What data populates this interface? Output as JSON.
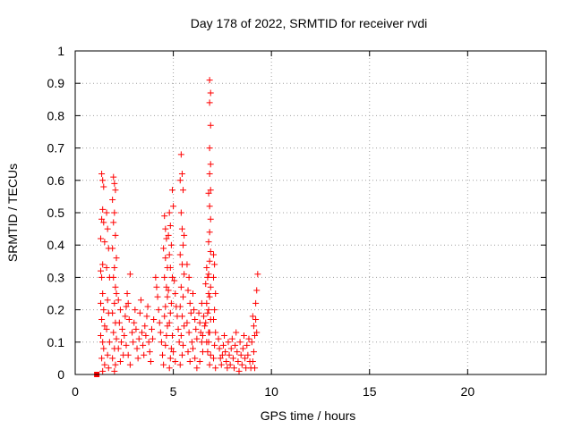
{
  "chart_data": {
    "type": "scatter",
    "title": "Day 178 of 2022, SRMTID for receiver rvdi",
    "xlabel": "GPS time / hours",
    "ylabel": "SRMTID / TECUs",
    "xlim": [
      0,
      24
    ],
    "ylim": [
      0,
      1
    ],
    "xticks": [
      "0",
      "5",
      "10",
      "15",
      "20"
    ],
    "yticks": [
      "0",
      "0.1",
      "0.2",
      "0.3",
      "0.4",
      "0.5",
      "0.6",
      "0.7",
      "0.8",
      "0.9",
      "1"
    ],
    "grid": true,
    "marker": "plus",
    "color": "#ff0000",
    "highlight_point": {
      "x": 1.1,
      "y": 0.0,
      "marker": "square"
    },
    "series": [
      {
        "name": "SRMTID",
        "points": [
          [
            1.35,
            0.62
          ],
          [
            1.4,
            0.6
          ],
          [
            1.45,
            0.58
          ],
          [
            1.4,
            0.51
          ],
          [
            1.35,
            0.48
          ],
          [
            1.45,
            0.47
          ],
          [
            1.3,
            0.42
          ],
          [
            1.5,
            0.41
          ],
          [
            1.4,
            0.34
          ],
          [
            1.3,
            0.32
          ],
          [
            1.35,
            0.3
          ],
          [
            1.4,
            0.25
          ],
          [
            1.3,
            0.22
          ],
          [
            1.45,
            0.2
          ],
          [
            1.35,
            0.17
          ],
          [
            1.5,
            0.15
          ],
          [
            1.3,
            0.12
          ],
          [
            1.4,
            0.1
          ],
          [
            1.45,
            0.08
          ],
          [
            1.35,
            0.05
          ],
          [
            1.5,
            0.03
          ],
          [
            1.4,
            0.01
          ],
          [
            1.6,
            0.5
          ],
          [
            1.65,
            0.45
          ],
          [
            1.7,
            0.39
          ],
          [
            1.6,
            0.33
          ],
          [
            1.75,
            0.3
          ],
          [
            1.65,
            0.23
          ],
          [
            1.7,
            0.19
          ],
          [
            1.6,
            0.14
          ],
          [
            1.75,
            0.1
          ],
          [
            1.65,
            0.06
          ],
          [
            1.7,
            0.02
          ],
          [
            1.95,
            0.61
          ],
          [
            2.0,
            0.59
          ],
          [
            2.05,
            0.57
          ],
          [
            1.9,
            0.54
          ],
          [
            2.0,
            0.5
          ],
          [
            1.95,
            0.47
          ],
          [
            2.05,
            0.43
          ],
          [
            1.9,
            0.39
          ],
          [
            2.1,
            0.36
          ],
          [
            2.0,
            0.33
          ],
          [
            1.95,
            0.3
          ],
          [
            2.05,
            0.27
          ],
          [
            2.1,
            0.25
          ],
          [
            2.0,
            0.22
          ],
          [
            1.9,
            0.19
          ],
          [
            2.05,
            0.16
          ],
          [
            1.95,
            0.13
          ],
          [
            2.1,
            0.11
          ],
          [
            2.0,
            0.08
          ],
          [
            1.9,
            0.05
          ],
          [
            2.05,
            0.03
          ],
          [
            2.0,
            0.01
          ],
          [
            2.2,
            0.23
          ],
          [
            2.3,
            0.2
          ],
          [
            2.25,
            0.16
          ],
          [
            2.4,
            0.14
          ],
          [
            2.35,
            0.1
          ],
          [
            2.2,
            0.08
          ],
          [
            2.45,
            0.06
          ],
          [
            2.3,
            0.04
          ],
          [
            2.5,
            0.12
          ],
          [
            2.55,
            0.18
          ],
          [
            2.6,
            0.21
          ],
          [
            2.65,
            0.25
          ],
          [
            2.7,
            0.22
          ],
          [
            2.75,
            0.17
          ],
          [
            2.8,
            0.31
          ],
          [
            2.6,
            0.09
          ],
          [
            2.7,
            0.06
          ],
          [
            2.8,
            0.03
          ],
          [
            2.9,
            0.13
          ],
          [
            2.95,
            0.1
          ],
          [
            3.0,
            0.16
          ],
          [
            3.05,
            0.2
          ],
          [
            3.1,
            0.14
          ],
          [
            3.15,
            0.08
          ],
          [
            3.2,
            0.05
          ],
          [
            3.25,
            0.11
          ],
          [
            3.3,
            0.19
          ],
          [
            3.35,
            0.23
          ],
          [
            3.4,
            0.13
          ],
          [
            3.45,
            0.09
          ],
          [
            3.5,
            0.06
          ],
          [
            3.55,
            0.15
          ],
          [
            3.6,
            0.12
          ],
          [
            3.65,
            0.18
          ],
          [
            3.7,
            0.21
          ],
          [
            3.75,
            0.1
          ],
          [
            3.8,
            0.07
          ],
          [
            3.85,
            0.04
          ],
          [
            3.9,
            0.14
          ],
          [
            3.95,
            0.11
          ],
          [
            4.0,
            0.17
          ],
          [
            4.1,
            0.3
          ],
          [
            4.15,
            0.27
          ],
          [
            4.2,
            0.24
          ],
          [
            4.25,
            0.2
          ],
          [
            4.3,
            0.16
          ],
          [
            4.35,
            0.13
          ],
          [
            4.4,
            0.1
          ],
          [
            4.45,
            0.06
          ],
          [
            4.5,
            0.03
          ],
          [
            4.55,
            0.49
          ],
          [
            4.6,
            0.45
          ],
          [
            4.65,
            0.42
          ],
          [
            4.5,
            0.39
          ],
          [
            4.6,
            0.36
          ],
          [
            4.7,
            0.33
          ],
          [
            4.55,
            0.3
          ],
          [
            4.65,
            0.27
          ],
          [
            4.7,
            0.24
          ],
          [
            4.6,
            0.21
          ],
          [
            4.55,
            0.18
          ],
          [
            4.7,
            0.15
          ],
          [
            4.65,
            0.12
          ],
          [
            4.6,
            0.09
          ],
          [
            4.8,
            0.5
          ],
          [
            4.85,
            0.46
          ],
          [
            4.75,
            0.43
          ],
          [
            4.9,
            0.4
          ],
          [
            4.8,
            0.37
          ],
          [
            4.85,
            0.33
          ],
          [
            4.95,
            0.3
          ],
          [
            4.75,
            0.26
          ],
          [
            4.9,
            0.22
          ],
          [
            4.85,
            0.19
          ],
          [
            4.8,
            0.16
          ],
          [
            4.95,
            0.12
          ],
          [
            4.9,
            0.08
          ],
          [
            4.85,
            0.05
          ],
          [
            4.8,
            0.02
          ],
          [
            4.95,
            0.57
          ],
          [
            5.0,
            0.52
          ],
          [
            5.05,
            0.29
          ],
          [
            5.1,
            0.25
          ],
          [
            5.15,
            0.21
          ],
          [
            5.2,
            0.18
          ],
          [
            5.25,
            0.14
          ],
          [
            5.3,
            0.1
          ],
          [
            5.0,
            0.07
          ],
          [
            5.1,
            0.04
          ],
          [
            5.4,
            0.68
          ],
          [
            5.45,
            0.62
          ],
          [
            5.35,
            0.6
          ],
          [
            5.5,
            0.57
          ],
          [
            5.4,
            0.5
          ],
          [
            5.45,
            0.45
          ],
          [
            5.55,
            0.43
          ],
          [
            5.5,
            0.4
          ],
          [
            5.35,
            0.37
          ],
          [
            5.45,
            0.34
          ],
          [
            5.55,
            0.31
          ],
          [
            5.4,
            0.27
          ],
          [
            5.5,
            0.24
          ],
          [
            5.35,
            0.21
          ],
          [
            5.45,
            0.18
          ],
          [
            5.55,
            0.15
          ],
          [
            5.4,
            0.12
          ],
          [
            5.5,
            0.09
          ],
          [
            5.45,
            0.06
          ],
          [
            5.35,
            0.03
          ],
          [
            5.7,
            0.34
          ],
          [
            5.8,
            0.3
          ],
          [
            5.75,
            0.26
          ],
          [
            5.85,
            0.22
          ],
          [
            5.9,
            0.19
          ],
          [
            5.7,
            0.16
          ],
          [
            5.8,
            0.13
          ],
          [
            5.95,
            0.1
          ],
          [
            5.75,
            0.07
          ],
          [
            5.85,
            0.04
          ],
          [
            6.0,
            0.25
          ],
          [
            6.05,
            0.2
          ],
          [
            6.1,
            0.17
          ],
          [
            6.15,
            0.14
          ],
          [
            6.2,
            0.11
          ],
          [
            6.0,
            0.08
          ],
          [
            6.1,
            0.05
          ],
          [
            6.2,
            0.02
          ],
          [
            6.3,
            0.19
          ],
          [
            6.35,
            0.16
          ],
          [
            6.4,
            0.13
          ],
          [
            6.45,
            0.1
          ],
          [
            6.5,
            0.07
          ],
          [
            6.35,
            0.04
          ],
          [
            6.45,
            0.22
          ],
          [
            6.55,
            0.18
          ],
          [
            6.6,
            0.15
          ],
          [
            6.5,
            0.12
          ],
          [
            6.7,
            0.33
          ],
          [
            6.75,
            0.3
          ],
          [
            6.65,
            0.28
          ],
          [
            6.8,
            0.25
          ],
          [
            6.7,
            0.22
          ],
          [
            6.75,
            0.19
          ],
          [
            6.65,
            0.16
          ],
          [
            6.8,
            0.13
          ],
          [
            6.7,
            0.1
          ],
          [
            6.75,
            0.07
          ],
          [
            6.85,
            0.91
          ],
          [
            6.9,
            0.87
          ],
          [
            6.85,
            0.84
          ],
          [
            6.9,
            0.77
          ],
          [
            6.85,
            0.7
          ],
          [
            6.9,
            0.65
          ],
          [
            6.85,
            0.62
          ],
          [
            6.9,
            0.57
          ],
          [
            6.8,
            0.56
          ],
          [
            6.85,
            0.52
          ],
          [
            6.9,
            0.48
          ],
          [
            6.85,
            0.44
          ],
          [
            6.8,
            0.41
          ],
          [
            6.9,
            0.38
          ],
          [
            6.85,
            0.35
          ],
          [
            6.8,
            0.31
          ],
          [
            6.9,
            0.27
          ],
          [
            6.85,
            0.24
          ],
          [
            6.8,
            0.2
          ],
          [
            6.9,
            0.17
          ],
          [
            6.85,
            0.13
          ],
          [
            6.8,
            0.1
          ],
          [
            6.9,
            0.06
          ],
          [
            6.85,
            0.03
          ],
          [
            7.05,
            0.37
          ],
          [
            7.1,
            0.34
          ],
          [
            7.05,
            0.3
          ],
          [
            7.15,
            0.25
          ],
          [
            7.1,
            0.2
          ],
          [
            7.05,
            0.17
          ],
          [
            7.15,
            0.13
          ],
          [
            7.1,
            0.09
          ],
          [
            7.05,
            0.05
          ],
          [
            7.15,
            0.02
          ],
          [
            7.3,
            0.11
          ],
          [
            7.35,
            0.08
          ],
          [
            7.4,
            0.05
          ],
          [
            7.45,
            0.03
          ],
          [
            7.5,
            0.06
          ],
          [
            7.55,
            0.09
          ],
          [
            7.6,
            0.12
          ],
          [
            7.65,
            0.07
          ],
          [
            7.7,
            0.04
          ],
          [
            7.75,
            0.02
          ],
          [
            7.8,
            0.1
          ],
          [
            7.85,
            0.06
          ],
          [
            7.9,
            0.03
          ],
          [
            7.95,
            0.08
          ],
          [
            8.0,
            0.11
          ],
          [
            8.05,
            0.05
          ],
          [
            8.1,
            0.02
          ],
          [
            8.15,
            0.09
          ],
          [
            8.2,
            0.13
          ],
          [
            8.25,
            0.07
          ],
          [
            8.3,
            0.04
          ],
          [
            8.35,
            0.01
          ],
          [
            8.4,
            0.1
          ],
          [
            8.45,
            0.06
          ],
          [
            8.5,
            0.03
          ],
          [
            8.55,
            0.08
          ],
          [
            8.6,
            0.12
          ],
          [
            8.65,
            0.05
          ],
          [
            8.7,
            0.02
          ],
          [
            8.75,
            0.09
          ],
          [
            8.8,
            0.06
          ],
          [
            8.85,
            0.11
          ],
          [
            8.9,
            0.04
          ],
          [
            8.95,
            0.02
          ],
          [
            9.05,
            0.18
          ],
          [
            9.1,
            0.15
          ],
          [
            9.15,
            0.12
          ],
          [
            9.0,
            0.1
          ],
          [
            9.1,
            0.07
          ],
          [
            9.05,
            0.04
          ],
          [
            9.15,
            0.02
          ],
          [
            9.2,
            0.22
          ],
          [
            9.25,
            0.26
          ],
          [
            9.3,
            0.31
          ],
          [
            9.2,
            0.17
          ],
          [
            9.25,
            0.13
          ]
        ]
      }
    ]
  }
}
